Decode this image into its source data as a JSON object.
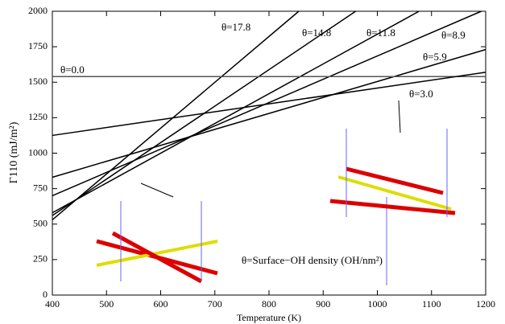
{
  "chart_data": {
    "type": "line",
    "xlabel": "Temperature (K)",
    "ylabel": "Γ110 (mJ/m²)",
    "annotation": "θ=Surface−OH density (OH/nm²)",
    "xlim": [
      400,
      1200
    ],
    "xticks": [
      400,
      500,
      600,
      700,
      800,
      900,
      1000,
      1100,
      1200
    ],
    "ylim": [
      0,
      2000
    ],
    "yticks": [
      0,
      250,
      500,
      750,
      1000,
      1250,
      1500,
      1750,
      2000
    ],
    "grid": false,
    "series": [
      {
        "name": "θ=17.8",
        "color": "#000000",
        "x": [
          400,
          855
        ],
        "values": [
          530,
          2000
        ]
      },
      {
        "name": "θ=14.8",
        "color": "#000000",
        "x": [
          400,
          960
        ],
        "values": [
          560,
          2000
        ]
      },
      {
        "name": "θ=11.8",
        "color": "#000000",
        "x": [
          400,
          1077
        ],
        "values": [
          580,
          2000
        ]
      },
      {
        "name": "θ=8.9",
        "color": "#000000",
        "x": [
          400,
          1192
        ],
        "values": [
          700,
          2000
        ]
      },
      {
        "name": "θ=5.9",
        "color": "#000000",
        "x": [
          400,
          1200
        ],
        "values": [
          830,
          1730
        ]
      },
      {
        "name": "θ=0.0",
        "color": "#555555",
        "x": [
          400,
          1200
        ],
        "values": [
          1540,
          1540
        ]
      },
      {
        "name": "θ=3.0",
        "color": "#000000",
        "x": [
          400,
          1200
        ],
        "values": [
          1125,
          1570
        ]
      }
    ]
  }
}
